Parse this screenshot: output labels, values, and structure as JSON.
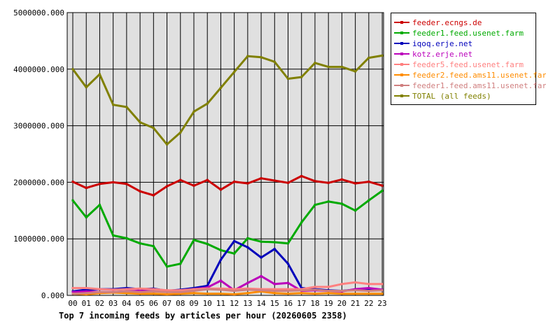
{
  "chart_data": {
    "type": "line",
    "title": "Top 7 incoming feeds by articles per hour (20260605 2358)",
    "x": [
      "00",
      "01",
      "02",
      "03",
      "04",
      "05",
      "06",
      "07",
      "08",
      "09",
      "10",
      "11",
      "12",
      "13",
      "14",
      "15",
      "16",
      "17",
      "18",
      "19",
      "20",
      "21",
      "22",
      "23"
    ],
    "ylim": [
      0,
      5000000
    ],
    "yticks": [
      "0.000",
      "1000000.000",
      "2000000.000",
      "3000000.000",
      "4000000.000",
      "5000000.000"
    ],
    "ytick_values": [
      0,
      1000000,
      2000000,
      3000000,
      4000000,
      5000000
    ],
    "grid": true,
    "legend_position": "right",
    "plot_background": "#e0e0e0",
    "series": [
      {
        "name": "feeder.ecngs.de",
        "color": "#cc0000",
        "values": [
          2010000,
          1900000,
          1970000,
          2000000,
          1970000,
          1840000,
          1770000,
          1930000,
          2040000,
          1940000,
          2040000,
          1870000,
          2010000,
          1980000,
          2070000,
          2030000,
          1990000,
          2110000,
          2020000,
          1990000,
          2050000,
          1980000,
          2010000,
          1940000
        ]
      },
      {
        "name": "feeder1.feed.usenet.farm",
        "color": "#00aa00",
        "values": [
          1680000,
          1380000,
          1600000,
          1060000,
          1010000,
          920000,
          870000,
          510000,
          560000,
          980000,
          910000,
          800000,
          740000,
          1010000,
          950000,
          940000,
          920000,
          1290000,
          1600000,
          1660000,
          1620000,
          1500000,
          1680000,
          1850000
        ]
      },
      {
        "name": "iqoq.erje.net",
        "color": "#0000bb",
        "values": [
          70000,
          100000,
          110000,
          110000,
          130000,
          110000,
          120000,
          80000,
          100000,
          130000,
          170000,
          630000,
          960000,
          850000,
          670000,
          820000,
          560000,
          130000,
          110000,
          90000,
          80000,
          100000,
          110000,
          90000
        ]
      },
      {
        "name": "kotz.erje.net",
        "color": "#bb00bb",
        "values": [
          60000,
          70000,
          60000,
          60000,
          70000,
          80000,
          70000,
          70000,
          90000,
          110000,
          140000,
          260000,
          90000,
          220000,
          340000,
          200000,
          220000,
          80000,
          90000,
          80000,
          70000,
          110000,
          130000,
          100000
        ]
      },
      {
        "name": "feeder5.feed.usenet.farm",
        "color": "#ff8080",
        "values": [
          130000,
          130000,
          110000,
          100000,
          110000,
          120000,
          110000,
          90000,
          90000,
          110000,
          120000,
          120000,
          110000,
          120000,
          110000,
          110000,
          110000,
          110000,
          150000,
          150000,
          200000,
          230000,
          200000,
          200000
        ]
      },
      {
        "name": "feeder2.feed.ams11.usenet.farm",
        "color": "#ff8c00",
        "values": [
          30000,
          20000,
          40000,
          50000,
          40000,
          30000,
          30000,
          20000,
          30000,
          40000,
          30000,
          30000,
          20000,
          40000,
          70000,
          40000,
          30000,
          40000,
          30000,
          40000,
          30000,
          30000,
          30000,
          30000
        ]
      },
      {
        "name": "feeder1.feed.ams11.usenet.farm",
        "color": "#d08080",
        "values": [
          30000,
          40000,
          60000,
          60000,
          70000,
          60000,
          70000,
          60000,
          60000,
          80000,
          110000,
          100000,
          80000,
          100000,
          90000,
          80000,
          80000,
          90000,
          100000,
          80000,
          80000,
          90000,
          80000,
          90000
        ]
      },
      {
        "name": "TOTAL (all feeds)",
        "color": "#808000",
        "values": [
          4000000,
          3680000,
          3910000,
          3370000,
          3330000,
          3060000,
          2960000,
          2670000,
          2880000,
          3250000,
          3390000,
          3670000,
          3950000,
          4230000,
          4210000,
          4130000,
          3830000,
          3860000,
          4110000,
          4040000,
          4040000,
          3960000,
          4200000,
          4240000
        ]
      }
    ]
  }
}
